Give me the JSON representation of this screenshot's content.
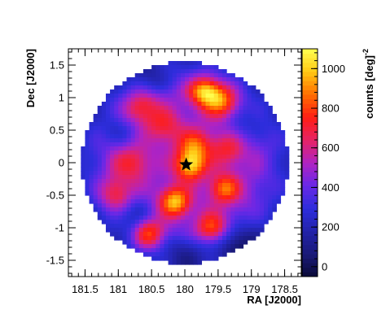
{
  "chart_data": {
    "type": "heatmap",
    "title": "",
    "xlabel": "RA [J2000]",
    "ylabel": "Dec [J2000]",
    "colorbar_label": "counts [deg]",
    "colorbar_label_exponent": "-2",
    "xlim": [
      181.75,
      178.25
    ],
    "ylim": [
      -1.75,
      1.75
    ],
    "x_ticks": [
      181.5,
      181,
      180.5,
      180,
      179.5,
      179,
      178.5
    ],
    "x_tick_labels": [
      "181.5",
      "181",
      "180.5",
      "180",
      "179.5",
      "179",
      "178.5"
    ],
    "y_ticks": [
      1.5,
      1,
      0.5,
      0,
      -0.5,
      -1,
      -1.5
    ],
    "y_tick_labels": [
      "1.5",
      "1",
      "0.5",
      "0",
      "-0.5",
      "-1",
      "-1.5"
    ],
    "color_range": [
      -50,
      1100
    ],
    "color_ticks": [
      0,
      200,
      400,
      600,
      800,
      1000
    ],
    "color_tick_labels": [
      "0",
      "200",
      "400",
      "600",
      "800",
      "1000"
    ],
    "field": {
      "center_ra": 180.0,
      "center_dec": 0.0,
      "radius_deg": 1.55
    },
    "marker": {
      "shape": "star",
      "ra": 179.98,
      "dec": -0.03,
      "color": "#000000"
    },
    "blobs": [
      {
        "ra": 179.92,
        "dec": -0.05,
        "amp": 520,
        "sigma": 0.16
      },
      {
        "ra": 179.85,
        "dec": 0.25,
        "amp": 380,
        "sigma": 0.18
      },
      {
        "ra": 179.7,
        "dec": 1.1,
        "amp": 520,
        "sigma": 0.16
      },
      {
        "ra": 179.45,
        "dec": 0.95,
        "amp": 420,
        "sigma": 0.18
      },
      {
        "ra": 180.15,
        "dec": -0.6,
        "amp": 540,
        "sigma": 0.16
      },
      {
        "ra": 179.4,
        "dec": -0.4,
        "amp": 420,
        "sigma": 0.16
      },
      {
        "ra": 180.55,
        "dec": -1.1,
        "amp": 420,
        "sigma": 0.16
      },
      {
        "ra": 179.6,
        "dec": -1.0,
        "amp": 380,
        "sigma": 0.16
      },
      {
        "ra": 180.65,
        "dec": 0.85,
        "amp": 300,
        "sigma": 0.2
      },
      {
        "ra": 180.8,
        "dec": 0.0,
        "amp": 260,
        "sigma": 0.2
      },
      {
        "ra": 179.35,
        "dec": 0.2,
        "amp": 260,
        "sigma": 0.18
      },
      {
        "ra": 181.05,
        "dec": -0.5,
        "amp": 280,
        "sigma": 0.18
      },
      {
        "ra": 180.3,
        "dec": 0.55,
        "amp": 240,
        "sigma": 0.18
      },
      {
        "ra": 180.95,
        "dec": 0.5,
        "amp": -180,
        "sigma": 0.2
      },
      {
        "ra": 180.75,
        "dec": -0.8,
        "amp": -220,
        "sigma": 0.2
      },
      {
        "ra": 179.2,
        "dec": -1.25,
        "amp": -250,
        "sigma": 0.22
      },
      {
        "ra": 180.5,
        "dec": 1.25,
        "amp": -160,
        "sigma": 0.2
      },
      {
        "ra": 179.1,
        "dec": 0.6,
        "amp": -180,
        "sigma": 0.2
      },
      {
        "ra": 180.0,
        "dec": -1.35,
        "amp": -200,
        "sigma": 0.22
      }
    ],
    "base_level": 460,
    "edge_falloff": 200
  }
}
